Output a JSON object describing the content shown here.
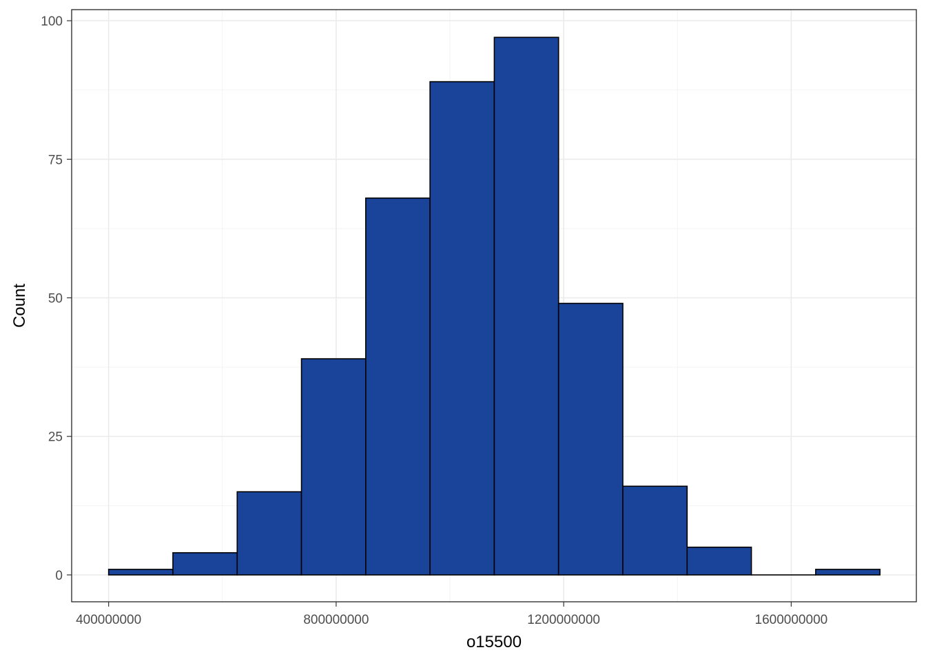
{
  "chart_data": {
    "type": "bar",
    "subtype": "histogram",
    "title": "",
    "xlabel": "o15500",
    "ylabel": "Count",
    "bins": [
      {
        "x0": 400000000,
        "x1": 513000000,
        "count": 1
      },
      {
        "x0": 513000000,
        "x1": 626000000,
        "count": 4
      },
      {
        "x0": 626000000,
        "x1": 739000000,
        "count": 15
      },
      {
        "x0": 739000000,
        "x1": 852000000,
        "count": 39
      },
      {
        "x0": 852000000,
        "x1": 965000000,
        "count": 68
      },
      {
        "x0": 965000000,
        "x1": 1078000000,
        "count": 89
      },
      {
        "x0": 1078000000,
        "x1": 1191000000,
        "count": 97
      },
      {
        "x0": 1191000000,
        "x1": 1304000000,
        "count": 49
      },
      {
        "x0": 1304000000,
        "x1": 1417000000,
        "count": 16
      },
      {
        "x0": 1417000000,
        "x1": 1530000000,
        "count": 5
      },
      {
        "x0": 1530000000,
        "x1": 1643000000,
        "count": 0
      },
      {
        "x0": 1643000000,
        "x1": 1756000000,
        "count": 1
      }
    ],
    "xlim": [
      335000000,
      1820000000
    ],
    "ylim": [
      -4.85,
      102
    ],
    "x_ticks": [
      400000000,
      800000000,
      1200000000,
      1600000000
    ],
    "x_tick_labels": [
      "400000000",
      "800000000",
      "1200000000",
      "1600000000"
    ],
    "x_minor_ticks": [
      600000000,
      1000000000,
      1400000000
    ],
    "y_ticks": [
      0,
      25,
      50,
      75,
      100
    ],
    "y_tick_labels": [
      "0",
      "25",
      "50",
      "75",
      "100"
    ],
    "y_minor_ticks": [
      12.5,
      37.5,
      62.5,
      87.5
    ],
    "grid": true,
    "legend": "none",
    "colors": {
      "bar_fill": "#194499",
      "bar_outline": "#000000",
      "background": "#ffffff",
      "grid_major": "#ebebeb",
      "panel_border": "#333333"
    }
  }
}
